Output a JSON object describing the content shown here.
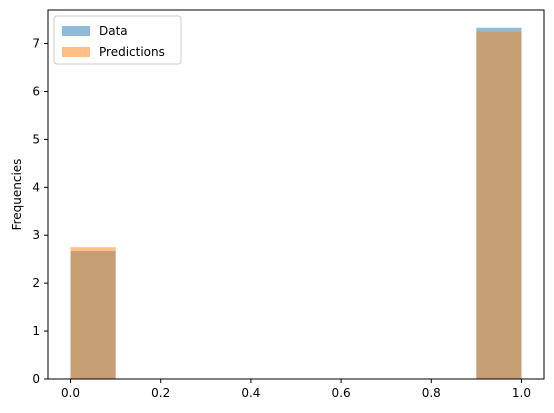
{
  "chart_data": {
    "type": "bar",
    "title": "",
    "xlabel": "",
    "ylabel": "Frequencies",
    "xlim": [
      -0.05,
      1.05
    ],
    "ylim": [
      0,
      7.7
    ],
    "x_ticks": [
      "0.0",
      "0.2",
      "0.4",
      "0.6",
      "0.8",
      "1.0"
    ],
    "y_ticks": [
      "0",
      "1",
      "2",
      "3",
      "4",
      "5",
      "6",
      "7"
    ],
    "bin_edges": [
      0.0,
      0.1,
      0.2,
      0.3,
      0.4,
      0.5,
      0.6,
      0.7,
      0.8,
      0.9,
      1.0
    ],
    "series": [
      {
        "name": "Data",
        "color": "#1f77b4",
        "alpha": 0.5,
        "values": [
          2.67,
          0,
          0,
          0,
          0,
          0,
          0,
          0,
          0,
          7.33
        ]
      },
      {
        "name": "Predictions",
        "color": "#ff7f0e",
        "alpha": 0.5,
        "values": [
          2.75,
          0,
          0,
          0,
          0,
          0,
          0,
          0,
          0,
          7.25
        ]
      }
    ],
    "grid": false,
    "legend_position": "top-left"
  }
}
